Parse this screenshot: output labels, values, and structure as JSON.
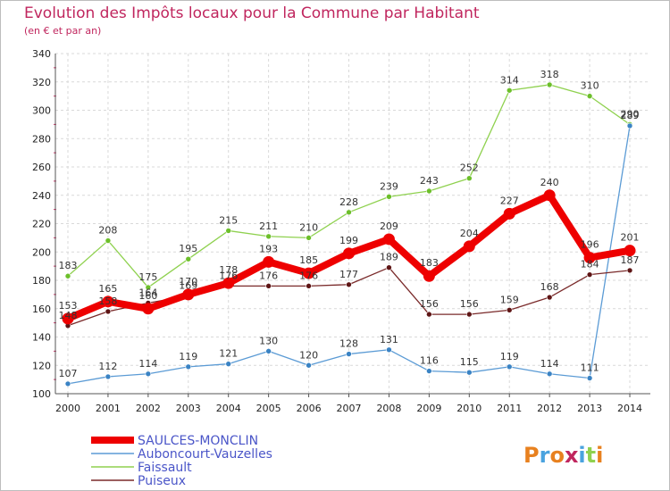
{
  "title": "Evolution des Impôts locaux pour la Commune par Habitant",
  "subtitle": "(en € et par an)",
  "logo_text": "Proxiti",
  "colors": {
    "title": "#c0265e",
    "grid": "#d9d9d9"
  },
  "chart_data": {
    "type": "line",
    "title": "Evolution des Impôts locaux pour la Commune par Habitant",
    "ylabel": "(en € et par an)",
    "xlabel": "",
    "ylim": [
      100,
      340
    ],
    "yticks": [
      100,
      120,
      140,
      160,
      180,
      200,
      220,
      240,
      260,
      280,
      300,
      320,
      340
    ],
    "grid": true,
    "legend": "bottom-left",
    "x": [
      "2000",
      "2001",
      "2002",
      "2003",
      "2004",
      "2005",
      "2006",
      "2007",
      "2008",
      "2009",
      "2010",
      "2011",
      "2012",
      "2013",
      "2014"
    ],
    "series": [
      {
        "name": "Faissault",
        "color": "#8fd14f",
        "point_color": "#6cbf2a",
        "values": [
          183,
          208,
          175,
          195,
          215,
          211,
          210,
          228,
          239,
          243,
          252,
          314,
          318,
          310,
          290
        ],
        "labels": [
          "183",
          "208",
          "175",
          "195",
          "215",
          "211",
          "210",
          "228",
          "239",
          "243",
          "252",
          "314",
          "318",
          "310",
          "290"
        ]
      },
      {
        "name": "Auboncourt-Vauzelles",
        "color": "#5b9bd5",
        "point_color": "#3a83c4",
        "values": [
          107,
          112,
          114,
          119,
          121,
          130,
          120,
          128,
          131,
          116,
          115,
          119,
          114,
          111,
          289
        ],
        "labels": [
          "107",
          "112",
          "114",
          "119",
          "121",
          "130",
          "120",
          "128",
          "131",
          "116",
          "115",
          "119",
          "114",
          "111",
          "289"
        ]
      },
      {
        "name": "Puiseux",
        "color": "#7a2a2a",
        "point_color": "#5e1515",
        "values": [
          148,
          158,
          164,
          169,
          176,
          176,
          176,
          177,
          189,
          156,
          156,
          159,
          168,
          184,
          187
        ],
        "labels": [
          "148",
          "158",
          "164",
          "169",
          "176",
          "176",
          "176",
          "177",
          "189",
          "156",
          "156",
          "159",
          "168",
          "184",
          "187"
        ]
      },
      {
        "name": "SAULCES-MONCLIN",
        "color": "#ee0000",
        "point_color": "#ee0000",
        "values": [
          153,
          165,
          160,
          170,
          178,
          193,
          185,
          199,
          209,
          183,
          204,
          227,
          240,
          196,
          201
        ],
        "labels": [
          "153",
          "165",
          "160",
          "170",
          "178",
          "193",
          "185",
          "199",
          "209",
          "183",
          "204",
          "227",
          "240",
          "196",
          "201"
        ],
        "bold": true
      }
    ]
  }
}
